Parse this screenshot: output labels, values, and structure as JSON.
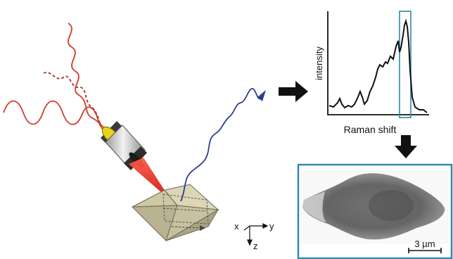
{
  "spectrum": {
    "ylabel": "intensity",
    "xlabel": "Raman shift"
  },
  "axes": {
    "x": "x",
    "y": "y",
    "z": "z"
  },
  "scale_bar": {
    "label": "3 µm"
  },
  "colors": {
    "excitation": "#d23a2a",
    "scattered": "#2e3f8f",
    "highlight_box": "#2f86a8",
    "laser_beam": "#e0281e",
    "crystal": "#d8d1b0",
    "objective_ring": "#e8d21a"
  },
  "icons": {
    "arrow_right": "arrow-right-icon",
    "arrow_down": "arrow-down-icon"
  }
}
